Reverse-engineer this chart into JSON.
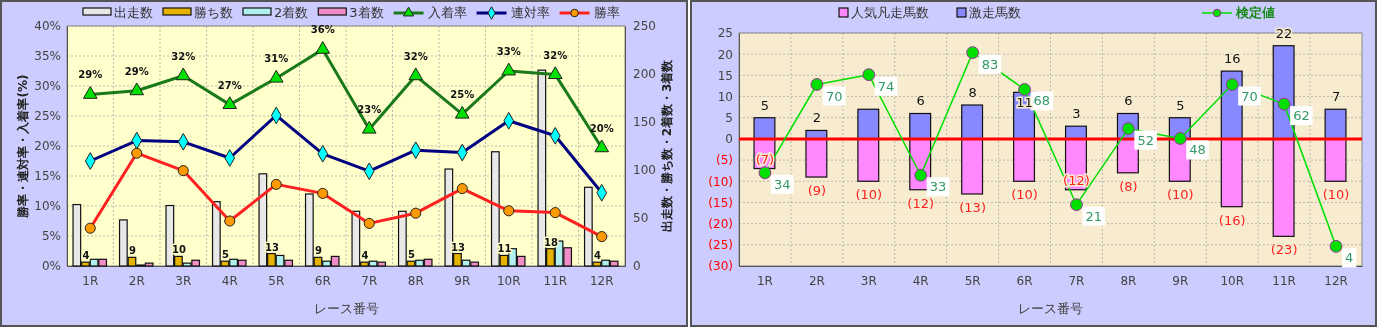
{
  "chart_data": [
    {
      "type": "bar",
      "categories": [
        "1R",
        "2R",
        "3R",
        "4R",
        "5R",
        "6R",
        "7R",
        "8R",
        "9R",
        "10R",
        "11R",
        "12R"
      ],
      "xlabel": "レース番号",
      "ylabel": "勝率・連対率・入着率(%)",
      "y2label": "出走数・勝ち数・2着数・3着数",
      "ylim": [
        0,
        40
      ],
      "yticks": [
        {
          "value": 0,
          "label": "0%"
        },
        {
          "value": 5,
          "label": "5%"
        },
        {
          "value": 10,
          "label": "10%"
        },
        {
          "value": 15,
          "label": "15%"
        },
        {
          "value": 20,
          "label": "20%"
        },
        {
          "value": 25,
          "label": "25%"
        },
        {
          "value": 30,
          "label": "30%"
        },
        {
          "value": 35,
          "label": "35%"
        },
        {
          "value": 40,
          "label": "40%"
        }
      ],
      "y2lim": [
        0,
        250
      ],
      "y2ticks": [
        0,
        50,
        100,
        150,
        200,
        250
      ],
      "grid": true,
      "legend": "top",
      "series": [
        {
          "name": "出走数",
          "color": "#e8e8e8",
          "axis": "y2",
          "values": [
            64,
            48,
            63,
            67,
            96,
            75,
            57,
            57,
            101,
            119,
            204,
            82
          ]
        },
        {
          "name": "勝ち数",
          "color": "#e6b400",
          "axis": "y2",
          "values": [
            4,
            9,
            10,
            5,
            13,
            9,
            4,
            5,
            13,
            11,
            18,
            4
          ],
          "value_labels": [
            "4",
            "9",
            "10",
            "5",
            "13",
            "9",
            "4",
            "5",
            "13",
            "11",
            "18",
            "4"
          ]
        },
        {
          "name": "2着数",
          "color": "#b0f0f0",
          "axis": "y2",
          "values": [
            7,
            1,
            3,
            7,
            11,
            5,
            5,
            6,
            6,
            18,
            26,
            6
          ]
        },
        {
          "name": "3着数",
          "color": "#f08cc8",
          "axis": "y2",
          "values": [
            7,
            3,
            6,
            6,
            6,
            10,
            4,
            7,
            4,
            10,
            19,
            5
          ]
        },
        {
          "name": "入着率",
          "type": "line",
          "color": "#1a7a1a",
          "marker": "triangle",
          "values": [
            28.6,
            29.2,
            31.7,
            26.9,
            31.3,
            36.1,
            22.8,
            31.7,
            25.3,
            32.5,
            31.9,
            19.7
          ],
          "value_labels": [
            "29%",
            "29%",
            "32%",
            "27%",
            "31%",
            "36%",
            "23%",
            "32%",
            "25%",
            "33%",
            "32%",
            "20%"
          ]
        },
        {
          "name": "連対率",
          "type": "line",
          "color": "#000080",
          "marker": "diamond",
          "values": [
            17.5,
            20.9,
            20.7,
            18.0,
            25.1,
            18.7,
            15.8,
            19.3,
            18.9,
            24.2,
            21.7,
            12.2
          ]
        },
        {
          "name": "勝率",
          "type": "line",
          "color": "#ff2020",
          "marker": "circle",
          "values": [
            6.3,
            18.8,
            15.9,
            7.5,
            13.6,
            12.1,
            7.1,
            8.8,
            12.9,
            9.2,
            8.9,
            4.9
          ]
        }
      ]
    },
    {
      "type": "bar",
      "stacked": true,
      "categories": [
        "1R",
        "2R",
        "3R",
        "4R",
        "5R",
        "6R",
        "7R",
        "8R",
        "9R",
        "10R",
        "11R",
        "12R"
      ],
      "xlabel": "レース番号",
      "ylim": [
        -30,
        25
      ],
      "yticks": [
        25,
        20,
        15,
        10,
        5,
        0,
        {
          "value": -5,
          "label": "(5)"
        },
        {
          "value": -10,
          "label": "(10)"
        },
        {
          "value": -15,
          "label": "(15)"
        },
        {
          "value": -20,
          "label": "(20)"
        },
        {
          "value": -25,
          "label": "(25)"
        },
        {
          "value": -30,
          "label": "(30)"
        }
      ],
      "y2lim": [
        -4,
        91
      ],
      "grid": true,
      "legend": "top",
      "ref_lines": [
        {
          "axis": "y",
          "value": 0,
          "color": "#ff0000"
        }
      ],
      "series": [
        {
          "name": "人気凡走馬数",
          "color": "#ff88ff",
          "values": [
            -7,
            -9,
            -10,
            -12,
            -13,
            -10,
            -12,
            -8,
            -10,
            -16,
            -23,
            -10
          ],
          "value_labels": [
            "(7)",
            "(9)",
            "(10)",
            "(12)",
            "(13)",
            "(10)",
            "(12)",
            "(8)",
            "(10)",
            "(16)",
            "(23)",
            "(10)"
          ]
        },
        {
          "name": "激走馬数",
          "color": "#8888ff",
          "values": [
            5,
            2,
            7,
            6,
            8,
            11,
            3,
            6,
            5,
            16,
            22,
            7
          ],
          "value_labels": [
            "5",
            "2",
            null,
            "6",
            "8",
            "11",
            "3",
            "6",
            "5",
            "16",
            "22",
            "7"
          ]
        },
        {
          "name": "検定値",
          "type": "line",
          "axis": "y2",
          "color": "#00e000",
          "marker": "circle",
          "values": [
            34,
            70,
            74,
            33,
            83,
            68,
            21,
            52,
            48,
            70,
            62,
            4
          ],
          "value_labels": [
            "34",
            "70",
            "74",
            "33",
            "83",
            "68",
            "21",
            "52",
            "48",
            "70",
            "62",
            "4"
          ]
        }
      ]
    }
  ]
}
